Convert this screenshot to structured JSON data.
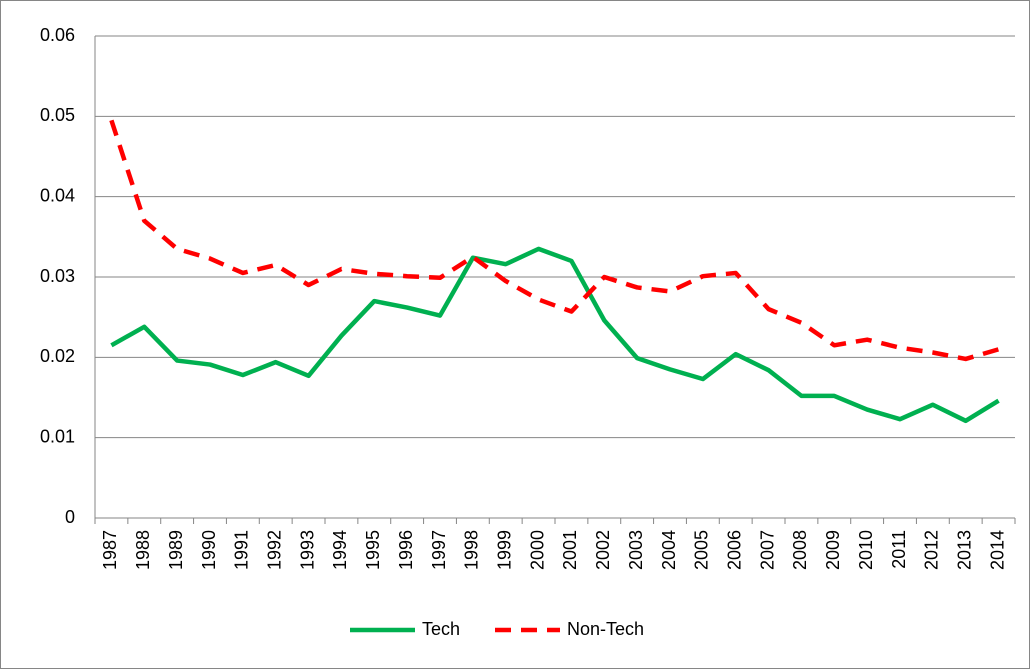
{
  "chart_data": {
    "type": "line",
    "categories": [
      "1987",
      "1988",
      "1989",
      "1990",
      "1991",
      "1992",
      "1993",
      "1994",
      "1995",
      "1996",
      "1997",
      "1998",
      "1999",
      "2000",
      "2001",
      "2002",
      "2003",
      "2004",
      "2005",
      "2006",
      "2007",
      "2008",
      "2009",
      "2010",
      "2011",
      "2012",
      "2013",
      "2014"
    ],
    "series": [
      {
        "name": "Tech",
        "color": "#00b050",
        "dash": false,
        "values": [
          0.0215,
          0.0238,
          0.0196,
          0.0191,
          0.0178,
          0.0194,
          0.0177,
          0.0227,
          0.027,
          0.0262,
          0.0252,
          0.0324,
          0.0316,
          0.0335,
          0.032,
          0.0246,
          0.0199,
          0.0185,
          0.0173,
          0.0204,
          0.0184,
          0.0152,
          0.0152,
          0.0135,
          0.0123,
          0.0141,
          0.0121,
          0.0146
        ]
      },
      {
        "name": "Non-Tech",
        "color": "#ff0000",
        "dash": true,
        "values": [
          0.0495,
          0.037,
          0.0335,
          0.0323,
          0.0305,
          0.0315,
          0.029,
          0.031,
          0.0304,
          0.0301,
          0.0299,
          0.0325,
          0.0295,
          0.0272,
          0.0257,
          0.03,
          0.0287,
          0.0282,
          0.0301,
          0.0305,
          0.026,
          0.0243,
          0.0215,
          0.0222,
          0.0212,
          0.0206,
          0.0198,
          0.021
        ]
      }
    ],
    "ylim": [
      0,
      0.06
    ],
    "yticks": [
      0,
      0.01,
      0.02,
      0.03,
      0.04,
      0.05,
      0.06
    ],
    "grid": true,
    "legend": "bottom"
  }
}
